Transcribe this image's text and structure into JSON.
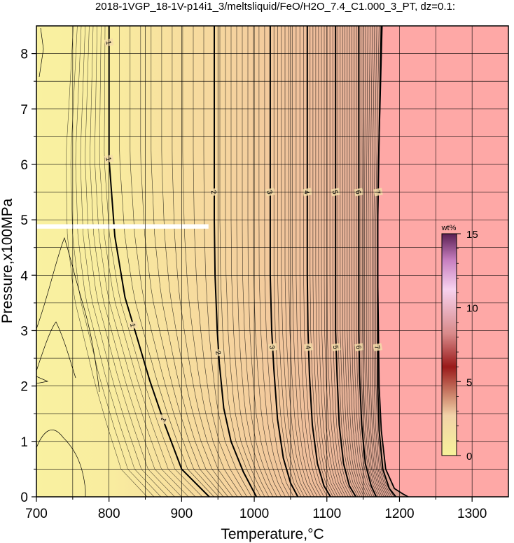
{
  "chart_data": {
    "type": "heatmap",
    "title": "2018-1VGP_18-1V-p14i1_3/meltsliquid/FeO/H2O_7.4_C1.000_3_PT, dz=0.1:",
    "xlabel": "Temperature,°C",
    "ylabel": "Pressure,x100MPa",
    "xlim": [
      700,
      1350
    ],
    "ylim": [
      0,
      8.5
    ],
    "xticks": [
      700,
      800,
      900,
      1000,
      1100,
      1200,
      1300
    ],
    "yticks": [
      0,
      1,
      2,
      3,
      4,
      5,
      6,
      7,
      8
    ],
    "grid": true,
    "colorbar": {
      "title": "wt%",
      "range": [
        0,
        15
      ],
      "ticks": [
        0,
        5,
        10,
        15
      ],
      "colors": [
        "#f7f29a",
        "#f2c9a8",
        "#9a1a1a",
        "#f2c6e6",
        "#5a1f52"
      ]
    },
    "liquidus_color": "#fea8a6",
    "contour_interval": 0.1,
    "major_contours": [
      {
        "level": 1,
        "label": "1",
        "points": [
          [
            800,
            8.5
          ],
          [
            800,
            6.1
          ],
          [
            808,
            4.7
          ],
          [
            822,
            3.6
          ],
          [
            838,
            2.9
          ],
          [
            856,
            2.1
          ],
          [
            877,
            1.3
          ],
          [
            900,
            0.5
          ],
          [
            938,
            0
          ]
        ]
      },
      {
        "level": 2,
        "label": "2",
        "points": [
          [
            945,
            8.5
          ],
          [
            945,
            6.0
          ],
          [
            945,
            5.0
          ],
          [
            946,
            4.0
          ],
          [
            949,
            3.0
          ],
          [
            952,
            2.4
          ],
          [
            958,
            1.6
          ],
          [
            968,
            1.0
          ],
          [
            985,
            0.45
          ],
          [
            1003,
            0
          ]
        ]
      },
      {
        "level": 3,
        "label": "3",
        "points": [
          [
            1022,
            8.5
          ],
          [
            1022,
            6.0
          ],
          [
            1022,
            4.0
          ],
          [
            1024,
            3.0
          ],
          [
            1027,
            2.3
          ],
          [
            1032,
            1.4
          ],
          [
            1040,
            0.7
          ],
          [
            1050,
            0.25
          ],
          [
            1060,
            0
          ]
        ]
      },
      {
        "level": 4,
        "label": "4",
        "points": [
          [
            1073,
            8.5
          ],
          [
            1073,
            6.0
          ],
          [
            1073,
            4.0
          ],
          [
            1074,
            3.0
          ],
          [
            1076,
            2.2
          ],
          [
            1080,
            1.3
          ],
          [
            1087,
            0.6
          ],
          [
            1096,
            0.2
          ],
          [
            1105,
            0
          ]
        ]
      },
      {
        "level": 5,
        "label": "5",
        "points": [
          [
            1112,
            8.5
          ],
          [
            1112,
            6.0
          ],
          [
            1112,
            4.0
          ],
          [
            1112,
            3.0
          ],
          [
            1114,
            2.2
          ],
          [
            1117,
            1.3
          ],
          [
            1123,
            0.6
          ],
          [
            1131,
            0.2
          ],
          [
            1140,
            0
          ]
        ]
      },
      {
        "level": 6,
        "label": "6",
        "points": [
          [
            1144,
            8.5
          ],
          [
            1144,
            6.0
          ],
          [
            1144,
            4.0
          ],
          [
            1144,
            3.0
          ],
          [
            1145,
            2.2
          ],
          [
            1148,
            1.3
          ],
          [
            1153,
            0.6
          ],
          [
            1161,
            0.2
          ],
          [
            1168,
            0
          ]
        ]
      },
      {
        "level": 7,
        "label": "7",
        "points": [
          [
            1175,
            8.5
          ],
          [
            1172,
            6.5
          ],
          [
            1170,
            5.0
          ],
          [
            1170,
            4.0
          ],
          [
            1170,
            3.0
          ],
          [
            1170,
            2.0
          ],
          [
            1172,
            1.2
          ],
          [
            1177,
            0.5
          ],
          [
            1186,
            0.15
          ],
          [
            1195,
            0
          ]
        ]
      }
    ],
    "liquidus_boundary": [
      [
        1176,
        8.5
      ],
      [
        1173,
        7.0
      ],
      [
        1171,
        6.0
      ],
      [
        1170,
        5.0
      ],
      [
        1170,
        4.0
      ],
      [
        1171,
        3.0
      ],
      [
        1172,
        2.0
      ],
      [
        1175,
        1.2
      ],
      [
        1181,
        0.5
      ],
      [
        1193,
        0.15
      ],
      [
        1205,
        0.05
      ],
      [
        1212,
        0
      ]
    ],
    "missing_data_band": {
      "x": [
        700,
        937
      ],
      "y": [
        4.84,
        4.92
      ]
    }
  }
}
